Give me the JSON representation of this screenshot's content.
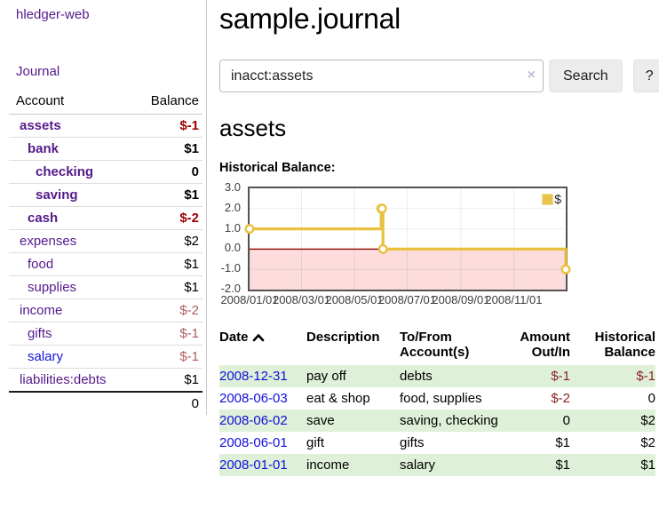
{
  "sidebar": {
    "brand": "hledger-web",
    "nav_journal": "Journal",
    "accounts_table": {
      "headers": {
        "account": "Account",
        "balance": "Balance"
      },
      "rows": [
        {
          "name": "assets",
          "indent": 1,
          "bold": true,
          "balance": "$-1"
        },
        {
          "name": "bank",
          "indent": 2,
          "bold": true,
          "balance": "$1"
        },
        {
          "name": "checking",
          "indent": 3,
          "bold": true,
          "balance": "0"
        },
        {
          "name": "saving",
          "indent": 3,
          "bold": true,
          "balance": "$1"
        },
        {
          "name": "cash",
          "indent": 2,
          "bold": true,
          "balance": "$-2"
        },
        {
          "name": "expenses",
          "indent": 1,
          "bold": false,
          "balance": "$2"
        },
        {
          "name": "food",
          "indent": 2,
          "bold": false,
          "balance": "$1"
        },
        {
          "name": "supplies",
          "indent": 2,
          "bold": false,
          "balance": "$1"
        },
        {
          "name": "income",
          "indent": 1,
          "bold": false,
          "balance": "$-2"
        },
        {
          "name": "gifts",
          "indent": 2,
          "bold": false,
          "balance": "$-1"
        },
        {
          "name": "salary",
          "indent": 2,
          "bold": false,
          "balance": "$-1"
        },
        {
          "name": "liabilities:debts",
          "indent": 1,
          "bold": false,
          "balance": "$1"
        }
      ],
      "total": "0"
    }
  },
  "header": {
    "title": "sample.journal"
  },
  "search": {
    "value": "inacct:assets",
    "clear_icon": "×",
    "search_label": "Search",
    "help_label": "?"
  },
  "account_page": {
    "title": "assets",
    "chart_label": "Historical Balance:"
  },
  "chart_data": {
    "type": "line",
    "step": true,
    "title": "Historical Balance:",
    "series": [
      {
        "name": "$",
        "color": "#e9c03f",
        "points": [
          [
            "2008-01-01",
            1
          ],
          [
            "2008-06-01",
            2
          ],
          [
            "2008-06-02",
            2
          ],
          [
            "2008-06-03",
            0
          ],
          [
            "2008-12-31",
            -1
          ]
        ]
      }
    ],
    "x_range": [
      "2008-01-01",
      "2008-12-31"
    ],
    "ylim": [
      -2,
      3
    ],
    "y_ticks": [
      "3.0",
      "2.0",
      "1.0",
      "0.0",
      "-1.0",
      "-2.0"
    ],
    "x_ticks": [
      "2008/01/01",
      "2008/03/01",
      "2008/05/01",
      "2008/07/01",
      "2008/09/01",
      "2008/11/01"
    ],
    "grid": true,
    "negative_region_fill": "#fcdcdc",
    "zero_line_color": "#8b0000",
    "legend": {
      "label": "$",
      "position": "top-right"
    }
  },
  "register": {
    "headers": {
      "date": "Date",
      "description": "Description",
      "account": "To/From Account(s)",
      "amount": "Amount Out/In",
      "balance": "Historical Balance"
    },
    "rows": [
      {
        "date": "2008-12-31",
        "description": "pay off",
        "account": "debts",
        "amount": "$-1",
        "balance": "$-1"
      },
      {
        "date": "2008-06-03",
        "description": "eat & shop",
        "account": "food, supplies",
        "amount": "$-2",
        "balance": "0"
      },
      {
        "date": "2008-06-02",
        "description": "save",
        "account": "saving, checking",
        "amount": "0",
        "balance": "$2"
      },
      {
        "date": "2008-06-01",
        "description": "gift",
        "account": "gifts",
        "amount": "$1",
        "balance": "$2"
      },
      {
        "date": "2008-01-01",
        "description": "income",
        "account": "salary",
        "amount": "$1",
        "balance": "$1"
      }
    ]
  },
  "colors": {
    "link_purple": "#551a8b",
    "link_blue": "#0f0fdd",
    "negative_strong": "#9b0000",
    "negative_dim": "#b05d5d",
    "row_stripe_green": "#dff0d8",
    "chart_line_gold": "#e9c03f",
    "chart_negative_fill": "#fcdcdc",
    "chart_zero_line": "#8b0000"
  }
}
